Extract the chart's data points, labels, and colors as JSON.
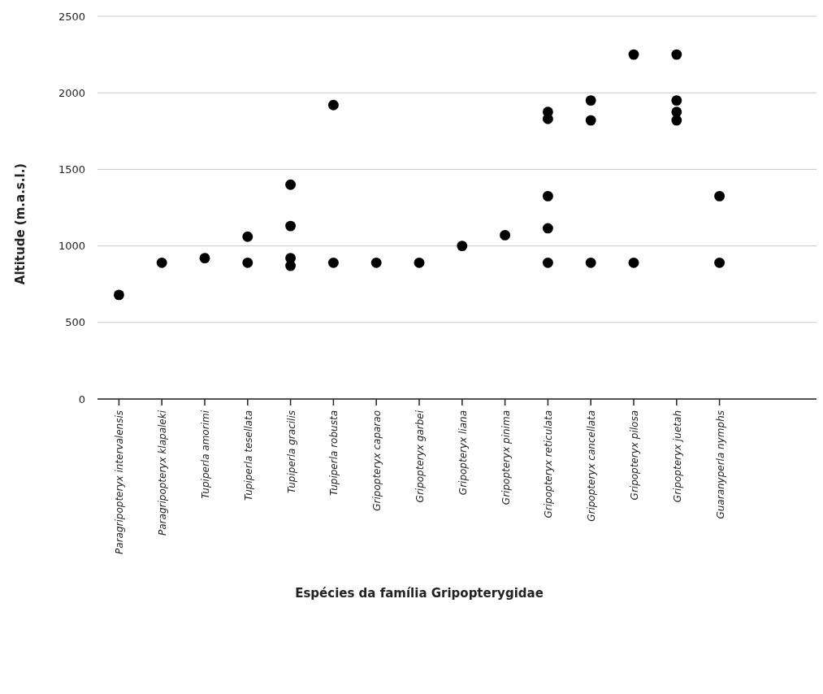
{
  "chart_data": {
    "type": "scatter",
    "xlabel": "Espécies da família Gripopterygidae",
    "ylabel": "Altitude (m.a.s.l.)",
    "categories": [
      "Paragripopteryx intervalensis",
      "Paragripopteryx klapaleki",
      "Tupiperla amorimi",
      "Tupiperla tesellata",
      "Tupiperla gracilis",
      "Tupiperla robusta",
      "Gripopteryx caparao",
      "Gripopteryx garbei",
      "Gripopteryx liana",
      "Gripopteryx pinima",
      "Gripopteryx reticulata",
      "Gripopteryx cancellata",
      "Gripopteryx pilosa",
      "Gripopteryx juetah",
      "Guaranyperla nymphs"
    ],
    "series": [
      {
        "color": "#000000",
        "x": [
          "Paragripopteryx intervalensis",
          "Paragripopteryx klapaleki",
          "Tupiperla amorimi",
          "Tupiperla tesellata",
          "Tupiperla tesellata",
          "Tupiperla gracilis",
          "Tupiperla gracilis",
          "Tupiperla gracilis",
          "Tupiperla gracilis",
          "Tupiperla robusta",
          "Tupiperla robusta",
          "Gripopteryx caparao",
          "Gripopteryx garbei",
          "Gripopteryx liana",
          "Gripopteryx pinima",
          "Gripopteryx reticulata",
          "Gripopteryx reticulata",
          "Gripopteryx reticulata",
          "Gripopteryx reticulata",
          "Gripopteryx reticulata",
          "Gripopteryx cancellata",
          "Gripopteryx cancellata",
          "Gripopteryx cancellata",
          "Gripopteryx pilosa",
          "Gripopteryx pilosa",
          "Gripopteryx juetah",
          "Gripopteryx juetah",
          "Gripopteryx juetah",
          "Gripopteryx juetah",
          "Guaranyperla nymphs",
          "Guaranyperla nymphs"
        ],
        "values": [
          680,
          890,
          920,
          1060,
          890,
          1400,
          1130,
          920,
          870,
          1920,
          890,
          890,
          890,
          1000,
          1070,
          1875,
          1830,
          1325,
          1115,
          890,
          1950,
          1820,
          890,
          2250,
          890,
          2250,
          1950,
          1875,
          1820,
          1325,
          890
        ]
      }
    ],
    "ylim": [
      0,
      2500
    ],
    "yticks": [
      0,
      500,
      1000,
      1500,
      2000,
      2500
    ],
    "grid": "y",
    "marker": "circle"
  }
}
